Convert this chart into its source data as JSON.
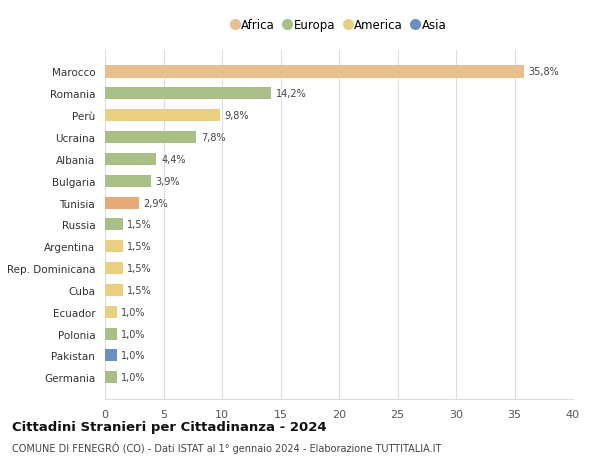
{
  "categories": [
    "Germania",
    "Pakistan",
    "Polonia",
    "Ecuador",
    "Cuba",
    "Rep. Dominicana",
    "Argentina",
    "Russia",
    "Tunisia",
    "Bulgaria",
    "Albania",
    "Ucraina",
    "Perù",
    "Romania",
    "Marocco"
  ],
  "values": [
    1.0,
    1.0,
    1.0,
    1.0,
    1.5,
    1.5,
    1.5,
    1.5,
    2.9,
    3.9,
    4.4,
    7.8,
    9.8,
    14.2,
    35.8
  ],
  "labels": [
    "1,0%",
    "1,0%",
    "1,0%",
    "1,0%",
    "1,5%",
    "1,5%",
    "1,5%",
    "1,5%",
    "2,9%",
    "3,9%",
    "4,4%",
    "7,8%",
    "9,8%",
    "14,2%",
    "35,8%"
  ],
  "colors": [
    "#a8c088",
    "#6b8fbf",
    "#a8c088",
    "#e8d080",
    "#e8d080",
    "#e8d080",
    "#e8d080",
    "#a8c088",
    "#e8a878",
    "#a8c088",
    "#a8c088",
    "#a8c088",
    "#e8d080",
    "#a8c088",
    "#e8c090"
  ],
  "continent": [
    "Europa",
    "Asia",
    "Europa",
    "America",
    "America",
    "America",
    "America",
    "Europa",
    "Africa",
    "Europa",
    "Europa",
    "Europa",
    "America",
    "Europa",
    "Africa"
  ],
  "legend_labels": [
    "Africa",
    "Europa",
    "America",
    "Asia"
  ],
  "legend_colors": [
    "#e8c090",
    "#a8c088",
    "#e8d080",
    "#6b8fbf"
  ],
  "title": "Cittadini Stranieri per Cittadinanza - 2024",
  "subtitle": "COMUNE DI FENEGRÒ (CO) - Dati ISTAT al 1° gennaio 2024 - Elaborazione TUTTITALIA.IT",
  "xlim": [
    0,
    40
  ],
  "xticks": [
    0,
    5,
    10,
    15,
    20,
    25,
    30,
    35,
    40
  ],
  "background_color": "#ffffff",
  "grid_color": "#dddddd",
  "bar_height": 0.55
}
